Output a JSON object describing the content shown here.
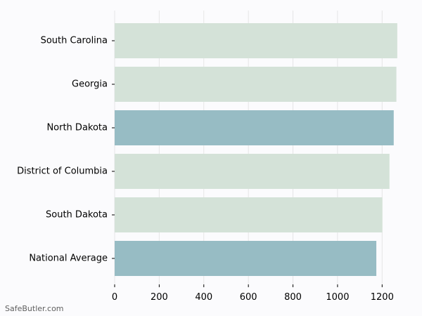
{
  "watermark": "SafeButler.com",
  "chart_data": {
    "type": "bar",
    "orientation": "horizontal",
    "title": "",
    "xlabel": "",
    "ylabel": "",
    "categories": [
      "South Carolina",
      "Georgia",
      "North Dakota",
      "District of Columbia",
      "South Dakota",
      "National Average"
    ],
    "values": [
      1268,
      1264,
      1252,
      1233,
      1201,
      1174
    ],
    "highlighted": [
      false,
      false,
      true,
      false,
      false,
      true
    ],
    "x_ticks": [
      0,
      200,
      400,
      600,
      800,
      1000,
      1200
    ],
    "xlim": [
      0,
      1300
    ],
    "grid": "vertical",
    "colors": {
      "bar": "#d4e2d8",
      "highlight": "#97bcc4",
      "grid": "#e6e6e6",
      "axis": "#000000",
      "background": "#fbfbfd"
    }
  }
}
